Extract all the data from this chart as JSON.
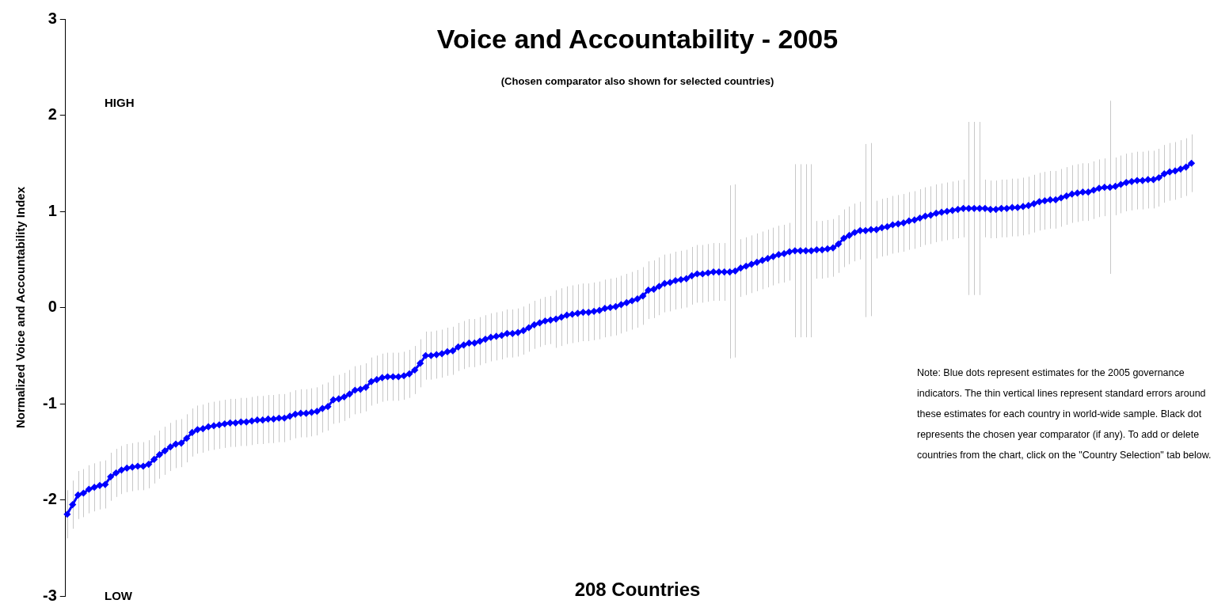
{
  "chart_data": {
    "type": "line",
    "title": "Voice and Accountability - 2005",
    "subtitle": "(Chosen comparator also shown for selected countries)",
    "xlabel": "208 Countries",
    "ylabel": "Normalized Voice and Accountability Index",
    "annotations": [
      "HIGH",
      "LOW",
      "Note: Blue dots represent estimates for the 2005 governance indicators. The thin vertical lines represent standard errors around these estimates for each country in world-wide sample. Black dot represents the chosen year comparator (if any). To add or delete countries from the chart, click on the \"Country Selection\" tab below."
    ],
    "categories": [
      null,
      null,
      null,
      null,
      null,
      null,
      null,
      null,
      null,
      null,
      null,
      null,
      null,
      null,
      null,
      null,
      null,
      null,
      null,
      null,
      null,
      null,
      null,
      null,
      null,
      null,
      null,
      null,
      null,
      null,
      null,
      null,
      null,
      null,
      null,
      null,
      null,
      null,
      null,
      null,
      null,
      null,
      null,
      null,
      null,
      null,
      null,
      null,
      null,
      null,
      null,
      null,
      null,
      null,
      null,
      null,
      null,
      null,
      null,
      null,
      null,
      null,
      null,
      null,
      null,
      null,
      null,
      null,
      null,
      null,
      null,
      null,
      null,
      null,
      null,
      null,
      null,
      null,
      null,
      null,
      null,
      null,
      null,
      null,
      null,
      null,
      null,
      null,
      null,
      null,
      null,
      null,
      null,
      null,
      null,
      null,
      null,
      null,
      null,
      null,
      null,
      null,
      null,
      null,
      null,
      null,
      null,
      null,
      null,
      null,
      null,
      null,
      null,
      null,
      null,
      null,
      null,
      null,
      null,
      null,
      null,
      null,
      null,
      null,
      null,
      null,
      null,
      null,
      null,
      null,
      null,
      null,
      null,
      null,
      null,
      null,
      null,
      null,
      null,
      null,
      null,
      null,
      null,
      null,
      null,
      null,
      null,
      null,
      null,
      null,
      null,
      null,
      null,
      null,
      null,
      null,
      null,
      null,
      null,
      null,
      null,
      null,
      null,
      null,
      null,
      null,
      null,
      null,
      null,
      null,
      null,
      null,
      null,
      null,
      null,
      null,
      null,
      null,
      null,
      null,
      null,
      null,
      null,
      null,
      null,
      null,
      null,
      null,
      null,
      null,
      null,
      null,
      null,
      null,
      null,
      null,
      null,
      null,
      null,
      null,
      null,
      null,
      null,
      null,
      null,
      null,
      null,
      null
    ],
    "series": [
      {
        "color": "#0000ff",
        "values": [
          -2.15,
          -2.05,
          -1.95,
          -1.93,
          -1.89,
          -1.87,
          -1.85,
          -1.84,
          -1.76,
          -1.72,
          -1.69,
          -1.67,
          -1.66,
          -1.65,
          -1.65,
          -1.63,
          -1.58,
          -1.53,
          -1.49,
          -1.45,
          -1.42,
          -1.41,
          -1.36,
          -1.3,
          -1.27,
          -1.26,
          -1.24,
          -1.23,
          -1.22,
          -1.21,
          -1.2,
          -1.2,
          -1.19,
          -1.19,
          -1.18,
          -1.17,
          -1.17,
          -1.16,
          -1.16,
          -1.15,
          -1.15,
          -1.13,
          -1.11,
          -1.1,
          -1.1,
          -1.09,
          -1.08,
          -1.05,
          -1.03,
          -0.96,
          -0.95,
          -0.93,
          -0.9,
          -0.86,
          -0.85,
          -0.83,
          -0.77,
          -0.75,
          -0.73,
          -0.72,
          -0.72,
          -0.72,
          -0.71,
          -0.69,
          -0.65,
          -0.58,
          -0.5,
          -0.5,
          -0.49,
          -0.48,
          -0.46,
          -0.45,
          -0.41,
          -0.39,
          -0.37,
          -0.37,
          -0.35,
          -0.33,
          -0.31,
          -0.3,
          -0.29,
          -0.27,
          -0.27,
          -0.26,
          -0.24,
          -0.21,
          -0.18,
          -0.16,
          -0.14,
          -0.13,
          -0.12,
          -0.1,
          -0.08,
          -0.07,
          -0.06,
          -0.05,
          -0.05,
          -0.04,
          -0.03,
          -0.01,
          0.0,
          0.01,
          0.03,
          0.05,
          0.07,
          0.09,
          0.12,
          0.18,
          0.19,
          0.22,
          0.25,
          0.26,
          0.28,
          0.29,
          0.3,
          0.33,
          0.35,
          0.35,
          0.36,
          0.37,
          0.37,
          0.37,
          0.37,
          0.38,
          0.41,
          0.43,
          0.45,
          0.47,
          0.49,
          0.51,
          0.53,
          0.55,
          0.56,
          0.58,
          0.59,
          0.59,
          0.59,
          0.59,
          0.6,
          0.6,
          0.61,
          0.62,
          0.66,
          0.72,
          0.75,
          0.78,
          0.8,
          0.8,
          0.81,
          0.81,
          0.83,
          0.84,
          0.86,
          0.87,
          0.88,
          0.9,
          0.91,
          0.93,
          0.95,
          0.96,
          0.98,
          0.99,
          1.0,
          1.01,
          1.02,
          1.03,
          1.03,
          1.03,
          1.03,
          1.03,
          1.02,
          1.02,
          1.03,
          1.03,
          1.04,
          1.04,
          1.05,
          1.06,
          1.08,
          1.1,
          1.11,
          1.12,
          1.12,
          1.14,
          1.16,
          1.18,
          1.19,
          1.2,
          1.2,
          1.22,
          1.24,
          1.25,
          1.25,
          1.26,
          1.28,
          1.3,
          1.31,
          1.32,
          1.32,
          1.33,
          1.33,
          1.35,
          1.39,
          1.41,
          1.42,
          1.44,
          1.46,
          1.5
        ],
        "errors": [
          0.25,
          0.25,
          0.25,
          0.25,
          0.25,
          0.25,
          0.25,
          0.25,
          0.25,
          0.25,
          0.25,
          0.25,
          0.25,
          0.25,
          0.25,
          0.25,
          0.25,
          0.25,
          0.25,
          0.25,
          0.25,
          0.25,
          0.25,
          0.25,
          0.25,
          0.25,
          0.25,
          0.25,
          0.25,
          0.25,
          0.25,
          0.25,
          0.25,
          0.25,
          0.25,
          0.25,
          0.25,
          0.25,
          0.25,
          0.25,
          0.25,
          0.25,
          0.25,
          0.25,
          0.25,
          0.25,
          0.25,
          0.25,
          0.25,
          0.25,
          0.25,
          0.25,
          0.25,
          0.25,
          0.25,
          0.25,
          0.25,
          0.25,
          0.25,
          0.25,
          0.25,
          0.25,
          0.25,
          0.25,
          0.25,
          0.25,
          0.25,
          0.25,
          0.25,
          0.25,
          0.25,
          0.25,
          0.25,
          0.25,
          0.25,
          0.25,
          0.25,
          0.25,
          0.25,
          0.25,
          0.25,
          0.25,
          0.25,
          0.25,
          0.25,
          0.25,
          0.25,
          0.25,
          0.25,
          0.25,
          0.3,
          0.3,
          0.3,
          0.3,
          0.3,
          0.3,
          0.3,
          0.3,
          0.3,
          0.3,
          0.3,
          0.3,
          0.3,
          0.3,
          0.3,
          0.3,
          0.3,
          0.3,
          0.3,
          0.3,
          0.3,
          0.3,
          0.3,
          0.3,
          0.3,
          0.3,
          0.3,
          0.3,
          0.3,
          0.3,
          0.3,
          0.3,
          0.9,
          0.9,
          0.3,
          0.3,
          0.3,
          0.3,
          0.3,
          0.3,
          0.3,
          0.3,
          0.3,
          0.3,
          0.9,
          0.9,
          0.9,
          0.9,
          0.3,
          0.3,
          0.3,
          0.3,
          0.3,
          0.3,
          0.3,
          0.3,
          0.3,
          0.9,
          0.9,
          0.3,
          0.3,
          0.3,
          0.3,
          0.3,
          0.3,
          0.3,
          0.3,
          0.3,
          0.3,
          0.3,
          0.3,
          0.3,
          0.3,
          0.3,
          0.3,
          0.3,
          0.9,
          0.9,
          0.9,
          0.3,
          0.3,
          0.3,
          0.3,
          0.3,
          0.3,
          0.3,
          0.3,
          0.3,
          0.3,
          0.3,
          0.3,
          0.3,
          0.3,
          0.3,
          0.3,
          0.3,
          0.3,
          0.3,
          0.3,
          0.3,
          0.3,
          0.3,
          0.9,
          0.3,
          0.3,
          0.3,
          0.3,
          0.3,
          0.3,
          0.3,
          0.3,
          0.3,
          0.3,
          0.3,
          0.3,
          0.3,
          0.3,
          0.3
        ]
      }
    ],
    "ylim": [
      -3,
      3
    ],
    "yticks": [
      -3,
      -2,
      -1,
      0,
      1,
      2,
      3
    ],
    "grid": false,
    "legend": false,
    "marker": "diamond",
    "tick_labels": "y"
  }
}
